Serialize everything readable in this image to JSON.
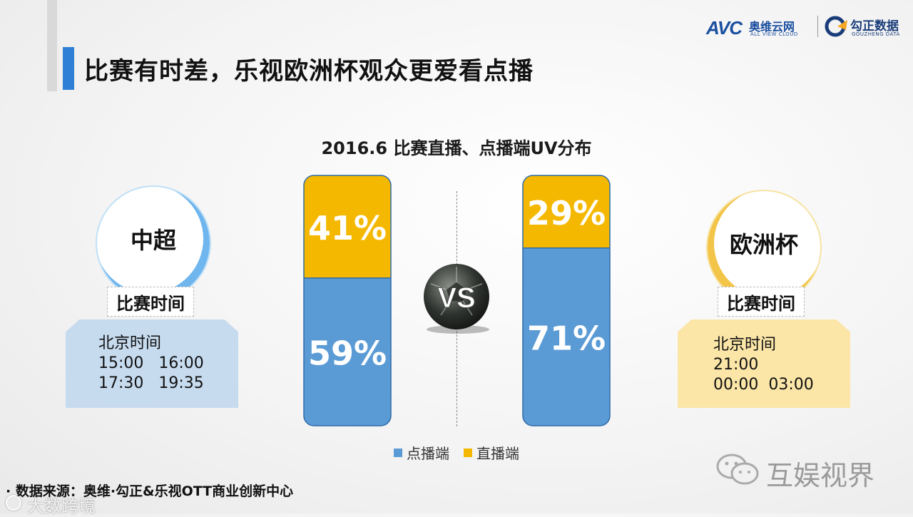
{
  "title": "比赛有时差，乐视欧洲杯观众更爱看点播",
  "logos": {
    "avc_mark": "AVC",
    "avc_name": "奥维云网",
    "avc_en": "ALL VIEW CLOUD",
    "gz_name": "勾正数据",
    "gz_en": "GOUZHENG DATA"
  },
  "left_panel": {
    "circle_label": "中超",
    "tag": "比赛时间",
    "lines": [
      "北京时间",
      "15:00   16:00",
      "17:30   19:35"
    ]
  },
  "right_panel": {
    "circle_label": "欧洲杯",
    "tag": "比赛时间",
    "lines": [
      "北京时间",
      "21:00",
      "00:00  03:00"
    ]
  },
  "vs_text": "VS",
  "legend": {
    "vod": "点播端",
    "live": "直播端"
  },
  "colors": {
    "vod": "#5b9bd5",
    "live": "#f5b800",
    "accent": "#2f7fd6"
  },
  "source": "· 数据来源：奥维·勾正&乐视OTT商业创新中心",
  "watermark_bottom": "大数跨境",
  "watermark_right": "互娱视界",
  "chart_data": {
    "type": "bar",
    "stacked": true,
    "title": "2016.6 比赛直播、点播端UV分布",
    "categories": [
      "中超",
      "欧洲杯"
    ],
    "series": [
      {
        "name": "点播端",
        "values": [
          59,
          71
        ],
        "labels": [
          "59%",
          "71%"
        ]
      },
      {
        "name": "直播端",
        "values": [
          41,
          29
        ],
        "labels": [
          "41%",
          "29%"
        ]
      }
    ],
    "ylim": [
      0,
      100
    ],
    "legend_position": "bottom"
  }
}
